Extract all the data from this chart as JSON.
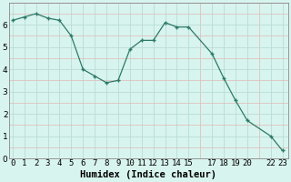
{
  "xlabel": "Humidex (Indice chaleur)",
  "x_values": [
    0,
    1,
    2,
    3,
    4,
    5,
    6,
    7,
    8,
    9,
    10,
    11,
    12,
    13,
    14,
    15,
    17,
    18,
    19,
    20,
    22,
    23
  ],
  "y_values": [
    6.2,
    6.35,
    6.5,
    6.3,
    6.2,
    5.5,
    4.0,
    3.7,
    3.4,
    3.5,
    4.9,
    5.3,
    5.3,
    6.1,
    5.9,
    5.9,
    4.7,
    3.6,
    2.6,
    1.7,
    1.0,
    0.35
  ],
  "line_color": "#2d7a68",
  "marker_color": "#2d7a68",
  "bg_color": "#d8f4ee",
  "ylim": [
    0,
    7
  ],
  "yticks": [
    0,
    1,
    2,
    3,
    4,
    5,
    6
  ],
  "xlim_min": -0.3,
  "xlim_max": 23.5,
  "xtick_positions": [
    0,
    1,
    2,
    3,
    4,
    5,
    6,
    7,
    8,
    9,
    10,
    11,
    12,
    13,
    14,
    15,
    17,
    18,
    19,
    20,
    22,
    23
  ],
  "xtick_labels": [
    "0",
    "1",
    "2",
    "3",
    "4",
    "5",
    "6",
    "7",
    "8",
    "9",
    "10",
    "11",
    "12",
    "13",
    "14",
    "15",
    "17",
    "18",
    "19",
    "20",
    "22",
    "23"
  ],
  "xlabel_fontsize": 7.5,
  "tick_fontsize": 6.5,
  "major_grid_color": "#b8ddd6",
  "minor_grid_color": "#e0b8b8",
  "spine_color": "#888888"
}
